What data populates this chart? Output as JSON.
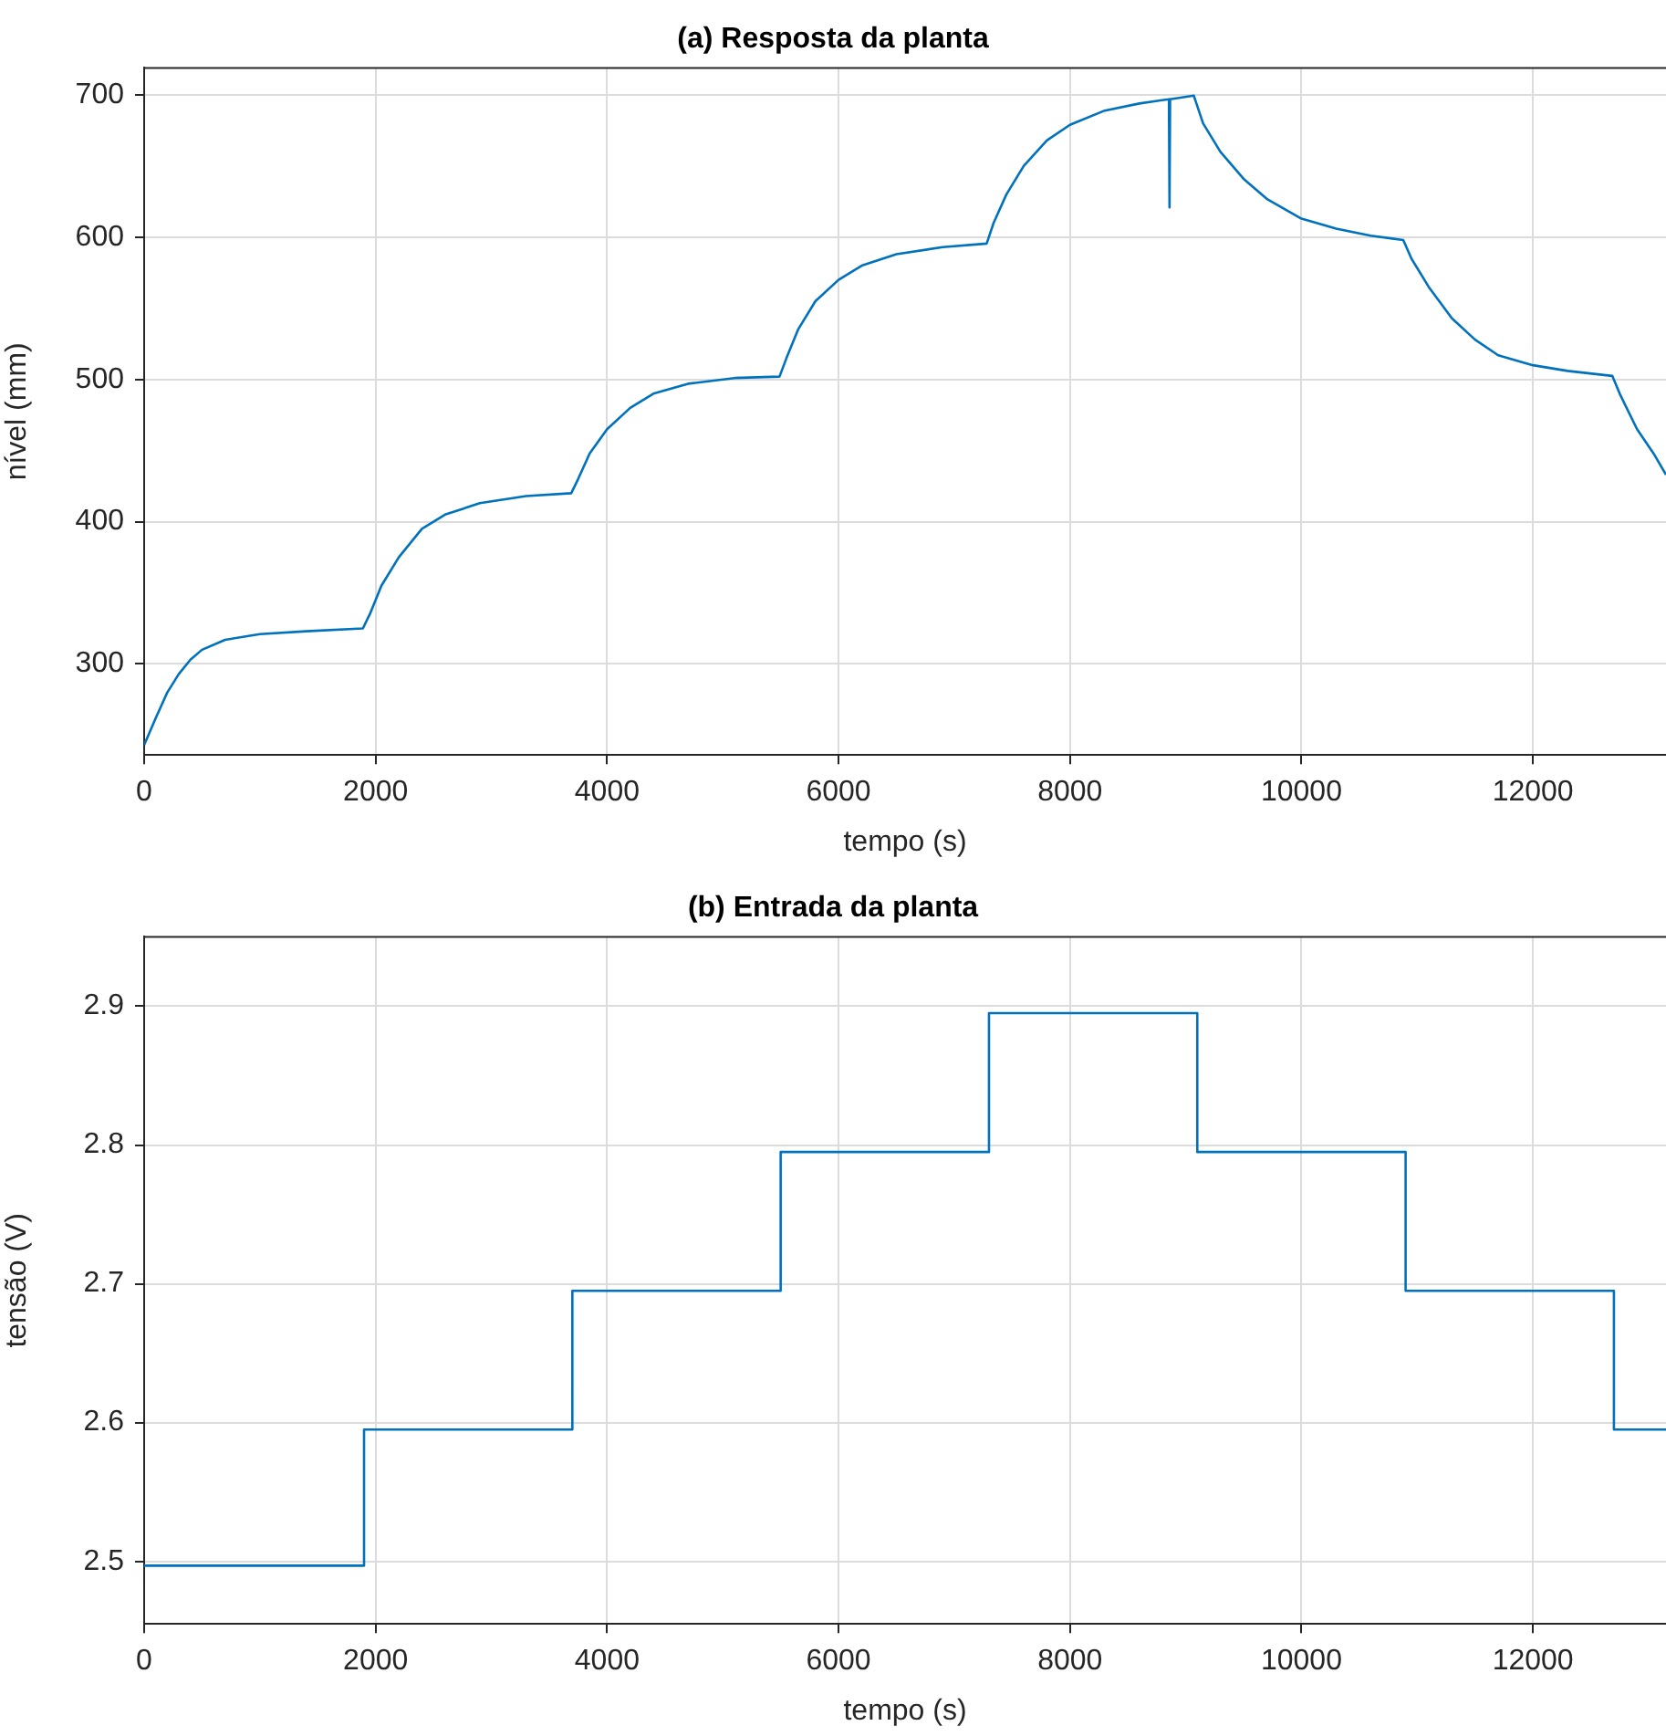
{
  "chart_data": [
    {
      "type": "line",
      "title": "(a) Resposta da planta",
      "xlabel": "tempo (s)",
      "ylabel": "nível (mm)",
      "marker": "none",
      "grid": true,
      "xlim": [
        0,
        13150
      ],
      "xticks": [
        0,
        2000,
        4000,
        6000,
        8000,
        10000,
        12000
      ],
      "ylim": [
        236,
        719
      ],
      "yticks": [
        300,
        400,
        500,
        600,
        700
      ],
      "x": [
        0,
        100,
        200,
        300,
        400,
        500,
        700,
        1000,
        1400,
        1890,
        1950,
        2050,
        2200,
        2400,
        2600,
        2900,
        3300,
        3690,
        3750,
        3850,
        4000,
        4200,
        4400,
        4700,
        5100,
        5490,
        5550,
        5650,
        5800,
        6000,
        6200,
        6500,
        6900,
        7280,
        7340,
        7450,
        7600,
        7800,
        8000,
        8300,
        8600,
        8855,
        8860,
        8865,
        9070,
        9150,
        9300,
        9500,
        9700,
        10000,
        10300,
        10600,
        10880,
        10950,
        11100,
        11300,
        11500,
        11700,
        12000,
        12300,
        12686,
        12750,
        12900,
        13050,
        13150
      ],
      "series": [
        {
          "color": "#0072bd",
          "values": [
            243,
            262,
            280,
            293,
            303,
            310,
            317,
            321,
            323,
            325,
            335,
            355,
            375,
            395,
            405,
            413,
            418,
            420,
            430,
            448,
            465,
            480,
            490,
            497,
            501,
            502,
            515,
            535,
            555,
            570,
            580,
            588,
            593,
            595.5,
            610,
            630,
            650,
            668,
            679,
            689,
            694,
            697,
            621,
            697,
            699.5,
            680,
            660,
            641,
            627,
            613,
            606,
            601,
            598,
            585,
            565,
            543,
            528,
            517,
            510,
            506,
            502.5,
            490,
            465,
            447,
            433
          ]
        }
      ]
    },
    {
      "type": "step",
      "title": "(b) Entrada da planta",
      "xlabel": "tempo (s)",
      "ylabel": "tensão (V)",
      "marker": "none",
      "grid": true,
      "xlim": [
        0,
        13150
      ],
      "xticks": [
        0,
        2000,
        4000,
        6000,
        8000,
        10000,
        12000
      ],
      "ylim": [
        2.455,
        2.95
      ],
      "yticks": [
        2.5,
        2.6,
        2.7,
        2.8,
        2.9
      ],
      "x": [
        0,
        1900,
        3700,
        5500,
        7300,
        9100,
        10900,
        12700,
        13150
      ],
      "series": [
        {
          "color": "#0072bd",
          "values": [
            2.497,
            2.595,
            2.695,
            2.795,
            2.895,
            2.795,
            2.695,
            2.595,
            2.595
          ]
        }
      ]
    }
  ]
}
